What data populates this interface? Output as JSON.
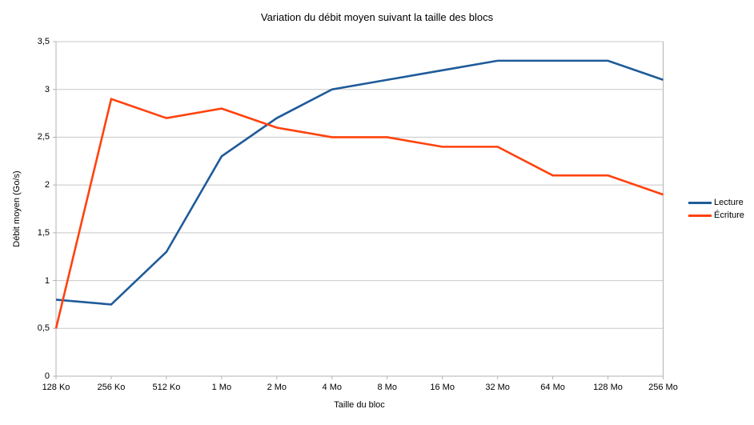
{
  "chart_data": {
    "type": "line",
    "title": "Variation du débit moyen suivant la taille des blocs",
    "xlabel": "Taille du bloc",
    "ylabel": "Débit moyen (Go/s)",
    "categories": [
      "128 Ko",
      "256 Ko",
      "512 Ko",
      "1 Mo",
      "2 Mo",
      "4 Mo",
      "8 Mo",
      "16 Mo",
      "32 Mo",
      "64 Mo",
      "128 Mo",
      "256 Mo"
    ],
    "series": [
      {
        "name": "Lecture",
        "color": "#1F5B99",
        "values": [
          0.8,
          0.75,
          1.3,
          2.3,
          2.7,
          3.0,
          3.1,
          3.2,
          3.3,
          3.3,
          3.3,
          3.1
        ]
      },
      {
        "name": "Écriture",
        "color": "#FF420E",
        "values": [
          0.5,
          2.9,
          2.7,
          2.8,
          2.6,
          2.5,
          2.5,
          2.4,
          2.4,
          2.1,
          2.1,
          1.9
        ]
      }
    ],
    "ylim": [
      0,
      3.5
    ],
    "ytick_step": 0.5,
    "ytick_labels": [
      "0",
      "0,5",
      "1",
      "1,5",
      "2",
      "2,5",
      "3",
      "3,5"
    ],
    "grid": true,
    "legend_position": "right",
    "colors": {
      "background": "#FFFFFF",
      "gridline": "#C8C8C8",
      "axis": "#B3B3B3",
      "text": "#000000"
    }
  }
}
